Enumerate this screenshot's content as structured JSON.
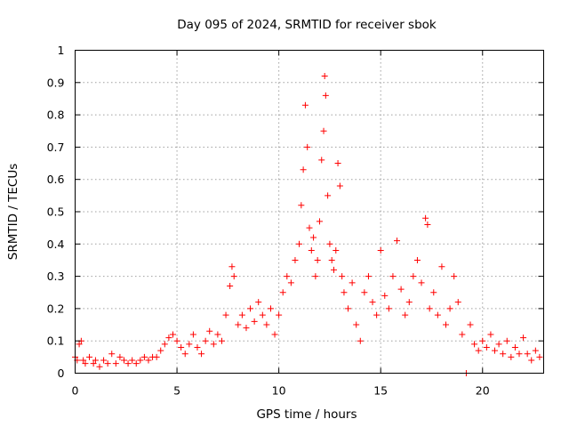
{
  "chart_data": {
    "type": "scatter",
    "title": "Day 095 of 2024, SRMTID for receiver sbok",
    "xlabel": "GPS time / hours",
    "ylabel": "SRMTID / TECUs",
    "xlim": [
      0,
      23
    ],
    "ylim": [
      0,
      1
    ],
    "xticks": [
      0,
      5,
      10,
      15,
      20
    ],
    "xtick_labels": [
      "0",
      "5",
      "10",
      "15",
      "20"
    ],
    "yticks": [
      0,
      0.1,
      0.2,
      0.3,
      0.4,
      0.5,
      0.6,
      0.7,
      0.8,
      0.9,
      1
    ],
    "ytick_labels": [
      "0",
      "0.1",
      "0.2",
      "0.3",
      "0.4",
      "0.5",
      "0.6",
      "0.7",
      "0.8",
      "0.9",
      "1"
    ],
    "grid": true,
    "marker": "plus",
    "color": "#ff0000",
    "series": [
      {
        "name": "SRMTID",
        "points": [
          [
            0.0,
            0.05
          ],
          [
            0.1,
            0.04
          ],
          [
            0.2,
            0.09
          ],
          [
            0.3,
            0.1
          ],
          [
            0.4,
            0.04
          ],
          [
            0.5,
            0.03
          ],
          [
            0.7,
            0.05
          ],
          [
            0.9,
            0.03
          ],
          [
            1.0,
            0.04
          ],
          [
            1.2,
            0.02
          ],
          [
            1.4,
            0.04
          ],
          [
            1.6,
            0.03
          ],
          [
            1.8,
            0.06
          ],
          [
            2.0,
            0.03
          ],
          [
            2.2,
            0.05
          ],
          [
            2.4,
            0.04
          ],
          [
            2.6,
            0.03
          ],
          [
            2.8,
            0.04
          ],
          [
            3.0,
            0.03
          ],
          [
            3.2,
            0.04
          ],
          [
            3.4,
            0.05
          ],
          [
            3.6,
            0.04
          ],
          [
            3.8,
            0.05
          ],
          [
            4.0,
            0.05
          ],
          [
            4.2,
            0.07
          ],
          [
            4.4,
            0.09
          ],
          [
            4.6,
            0.11
          ],
          [
            4.8,
            0.12
          ],
          [
            5.0,
            0.1
          ],
          [
            5.2,
            0.08
          ],
          [
            5.4,
            0.06
          ],
          [
            5.6,
            0.09
          ],
          [
            5.8,
            0.12
          ],
          [
            6.0,
            0.08
          ],
          [
            6.2,
            0.06
          ],
          [
            6.4,
            0.1
          ],
          [
            6.6,
            0.13
          ],
          [
            6.8,
            0.09
          ],
          [
            7.0,
            0.12
          ],
          [
            7.2,
            0.1
          ],
          [
            7.4,
            0.18
          ],
          [
            7.6,
            0.27
          ],
          [
            7.8,
            0.3
          ],
          [
            7.7,
            0.33
          ],
          [
            8.0,
            0.15
          ],
          [
            8.2,
            0.18
          ],
          [
            8.4,
            0.14
          ],
          [
            8.6,
            0.2
          ],
          [
            8.8,
            0.16
          ],
          [
            9.0,
            0.22
          ],
          [
            9.2,
            0.18
          ],
          [
            9.4,
            0.15
          ],
          [
            9.6,
            0.2
          ],
          [
            9.8,
            0.12
          ],
          [
            10.0,
            0.18
          ],
          [
            10.2,
            0.25
          ],
          [
            10.4,
            0.3
          ],
          [
            10.6,
            0.28
          ],
          [
            10.8,
            0.35
          ],
          [
            11.0,
            0.4
          ],
          [
            11.1,
            0.52
          ],
          [
            11.2,
            0.63
          ],
          [
            11.3,
            0.83
          ],
          [
            11.4,
            0.7
          ],
          [
            11.5,
            0.45
          ],
          [
            11.6,
            0.38
          ],
          [
            11.7,
            0.42
          ],
          [
            11.8,
            0.3
          ],
          [
            11.9,
            0.35
          ],
          [
            12.0,
            0.47
          ],
          [
            12.1,
            0.66
          ],
          [
            12.2,
            0.75
          ],
          [
            12.25,
            0.92
          ],
          [
            12.3,
            0.86
          ],
          [
            12.4,
            0.55
          ],
          [
            12.5,
            0.4
          ],
          [
            12.6,
            0.35
          ],
          [
            12.7,
            0.32
          ],
          [
            12.8,
            0.38
          ],
          [
            12.9,
            0.65
          ],
          [
            13.0,
            0.58
          ],
          [
            13.1,
            0.3
          ],
          [
            13.2,
            0.25
          ],
          [
            13.4,
            0.2
          ],
          [
            13.6,
            0.28
          ],
          [
            13.8,
            0.15
          ],
          [
            14.0,
            0.1
          ],
          [
            14.2,
            0.25
          ],
          [
            14.4,
            0.3
          ],
          [
            14.6,
            0.22
          ],
          [
            14.8,
            0.18
          ],
          [
            15.0,
            0.38
          ],
          [
            15.2,
            0.24
          ],
          [
            15.4,
            0.2
          ],
          [
            15.6,
            0.3
          ],
          [
            15.8,
            0.41
          ],
          [
            16.0,
            0.26
          ],
          [
            16.2,
            0.18
          ],
          [
            16.4,
            0.22
          ],
          [
            16.6,
            0.3
          ],
          [
            16.8,
            0.35
          ],
          [
            17.0,
            0.28
          ],
          [
            17.2,
            0.48
          ],
          [
            17.3,
            0.46
          ],
          [
            17.4,
            0.2
          ],
          [
            17.6,
            0.25
          ],
          [
            17.8,
            0.18
          ],
          [
            18.0,
            0.33
          ],
          [
            18.2,
            0.15
          ],
          [
            18.4,
            0.2
          ],
          [
            18.6,
            0.3
          ],
          [
            18.8,
            0.22
          ],
          [
            19.0,
            0.12
          ],
          [
            19.2,
            0.0
          ],
          [
            19.4,
            0.15
          ],
          [
            19.6,
            0.09
          ],
          [
            19.8,
            0.07
          ],
          [
            20.0,
            0.1
          ],
          [
            20.2,
            0.08
          ],
          [
            20.4,
            0.12
          ],
          [
            20.6,
            0.07
          ],
          [
            20.8,
            0.09
          ],
          [
            21.0,
            0.06
          ],
          [
            21.2,
            0.1
          ],
          [
            21.4,
            0.05
          ],
          [
            21.6,
            0.08
          ],
          [
            21.8,
            0.06
          ],
          [
            22.0,
            0.11
          ],
          [
            22.2,
            0.06
          ],
          [
            22.4,
            0.04
          ],
          [
            22.6,
            0.07
          ],
          [
            22.8,
            0.05
          ]
        ]
      }
    ]
  }
}
